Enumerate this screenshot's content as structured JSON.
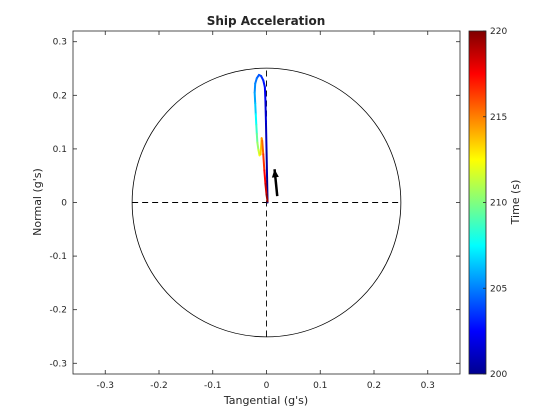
{
  "chart_data": {
    "type": "line",
    "title": "Ship Acceleration",
    "xlabel": "Tangential  (g's)",
    "ylabel": "Normal  (g's)",
    "xlim": [
      -0.36,
      0.36
    ],
    "ylim": [
      -0.32,
      0.32
    ],
    "x_ticks": [
      -0.3,
      -0.2,
      -0.1,
      0,
      0.1,
      0.2,
      0.3
    ],
    "x_tick_labels": [
      "-0.3",
      "-0.2",
      "-0.1",
      "0",
      "0.1",
      "0.2",
      "0.3"
    ],
    "y_ticks": [
      -0.3,
      -0.2,
      -0.1,
      0,
      0.1,
      0.2,
      0.3
    ],
    "y_tick_labels": [
      "-0.3",
      "-0.2",
      "-0.1",
      "0",
      "0.1",
      "0.2",
      "0.3"
    ],
    "grid": false,
    "reference_circle": {
      "radius": 0.25,
      "color": "#000000"
    },
    "crosshair": {
      "style": "dashed",
      "extent": 0.25,
      "color": "#000000"
    },
    "trajectory": {
      "colormap": "jet",
      "points": [
        {
          "t": 200.0,
          "x": 0.002,
          "y": 0.0
        },
        {
          "t": 200.5,
          "x": 0.001,
          "y": 0.05
        },
        {
          "t": 201.0,
          "x": 0.0,
          "y": 0.1
        },
        {
          "t": 201.5,
          "x": -0.001,
          "y": 0.15
        },
        {
          "t": 202.0,
          "x": -0.002,
          "y": 0.19
        },
        {
          "t": 202.5,
          "x": -0.003,
          "y": 0.215
        },
        {
          "t": 203.0,
          "x": -0.006,
          "y": 0.228
        },
        {
          "t": 203.5,
          "x": -0.01,
          "y": 0.236
        },
        {
          "t": 204.0,
          "x": -0.014,
          "y": 0.238
        },
        {
          "t": 204.5,
          "x": -0.018,
          "y": 0.232
        },
        {
          "t": 205.0,
          "x": -0.021,
          "y": 0.222
        },
        {
          "t": 205.5,
          "x": -0.022,
          "y": 0.205
        },
        {
          "t": 206.0,
          "x": -0.021,
          "y": 0.185
        },
        {
          "t": 207.0,
          "x": -0.02,
          "y": 0.165
        },
        {
          "t": 208.0,
          "x": -0.019,
          "y": 0.145
        },
        {
          "t": 209.0,
          "x": -0.018,
          "y": 0.128
        },
        {
          "t": 210.0,
          "x": -0.017,
          "y": 0.112
        },
        {
          "t": 211.0,
          "x": -0.015,
          "y": 0.098
        },
        {
          "t": 212.0,
          "x": -0.013,
          "y": 0.088
        },
        {
          "t": 213.0,
          "x": -0.011,
          "y": 0.09
        },
        {
          "t": 214.0,
          "x": -0.009,
          "y": 0.12
        },
        {
          "t": 215.0,
          "x": -0.008,
          "y": 0.115
        },
        {
          "t": 216.0,
          "x": -0.006,
          "y": 0.09
        },
        {
          "t": 217.0,
          "x": -0.004,
          "y": 0.06
        },
        {
          "t": 218.0,
          "x": -0.002,
          "y": 0.035
        },
        {
          "t": 219.0,
          "x": 0.0,
          "y": 0.015
        },
        {
          "t": 220.0,
          "x": 0.002,
          "y": 0.002
        }
      ]
    },
    "current_vector": {
      "from": [
        0.02,
        0.012
      ],
      "to": [
        0.015,
        0.062
      ],
      "color": "#000000"
    },
    "colorbar": {
      "label": "Time  (s)",
      "limits": [
        200,
        220
      ],
      "ticks": [
        200,
        205,
        210,
        215,
        220
      ],
      "tick_labels": [
        "200",
        "205",
        "210",
        "215",
        "220"
      ],
      "colormap": "jet",
      "placement": "right"
    }
  }
}
